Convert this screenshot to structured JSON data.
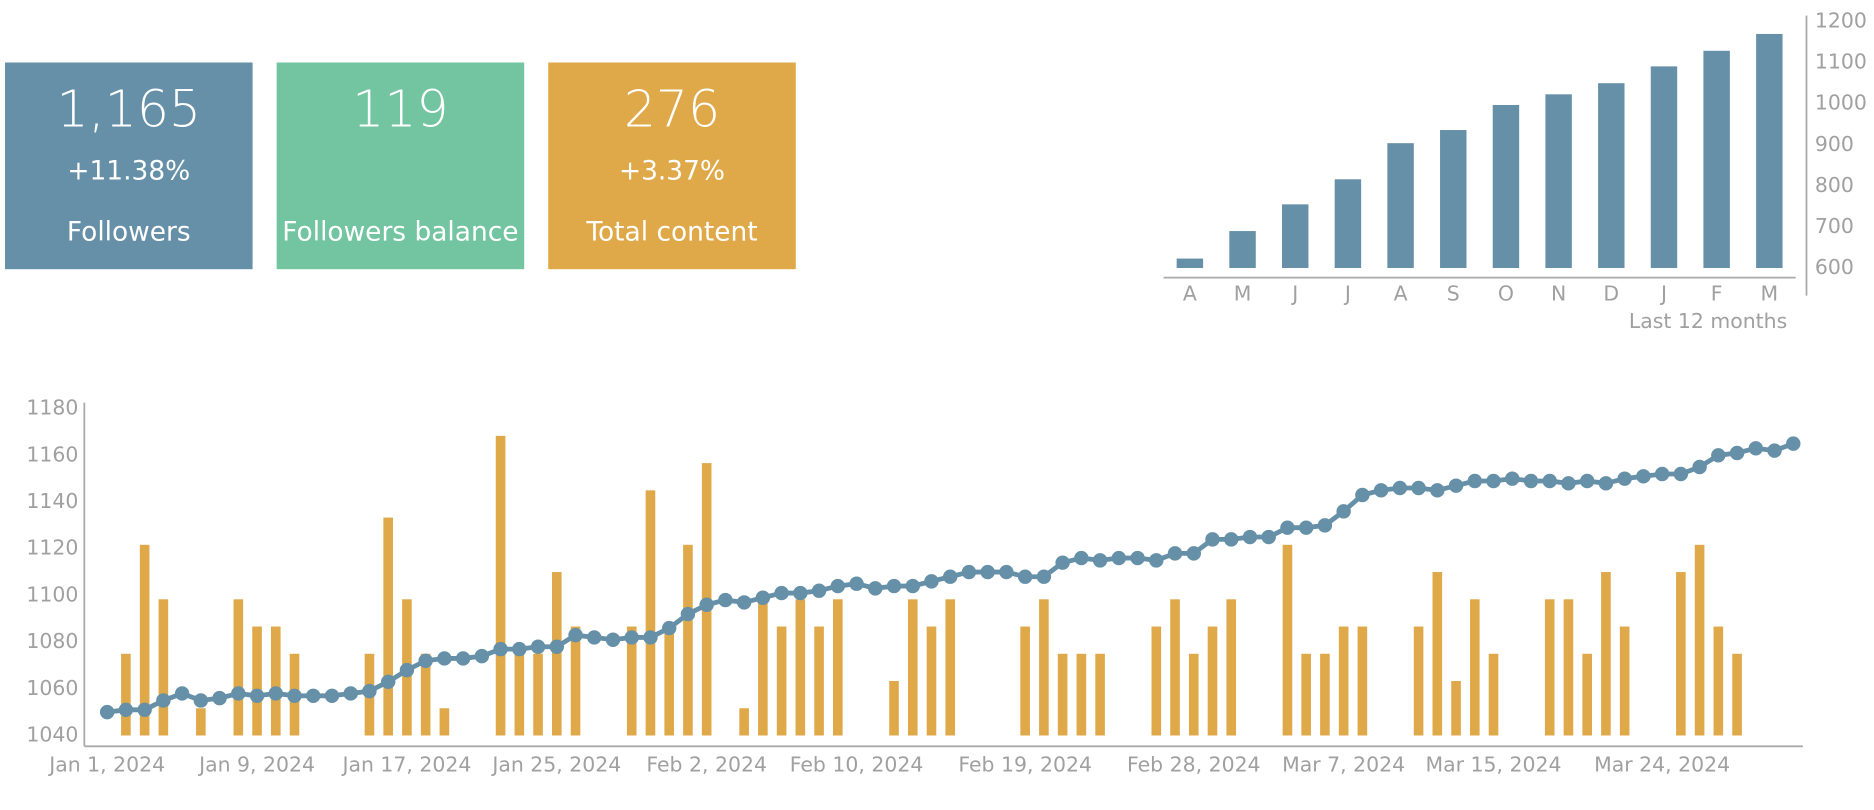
{
  "kpis": [
    {
      "value": "1,165",
      "change": "+11.38%",
      "label": "Followers",
      "color": "#6690a8"
    },
    {
      "value": "119",
      "label": "Followers balance",
      "color": "#72c5a0"
    },
    {
      "value": "276",
      "change": "+3.37%",
      "label": "Total content",
      "color": "#dfa94a"
    }
  ],
  "chart_data": [
    {
      "type": "bar",
      "subtitle": "Last 12 months",
      "categories": [
        "A",
        "M",
        "J",
        "J",
        "A",
        "S",
        "O",
        "N",
        "D",
        "J",
        "F",
        "M"
      ],
      "values": [
        623,
        690,
        755,
        816,
        904,
        936,
        997,
        1023,
        1050,
        1091,
        1129,
        1170
      ],
      "color": "#6690a8",
      "ylim": [
        600,
        1200
      ],
      "yticks": [
        600,
        700,
        800,
        900,
        1000,
        1100,
        1200
      ],
      "y_axis_side": "right",
      "grid": false
    },
    {
      "type": "combo",
      "grid": false,
      "x": [
        "2024-01-01",
        "2024-01-02",
        "2024-01-03",
        "2024-01-04",
        "2024-01-05",
        "2024-01-06",
        "2024-01-07",
        "2024-01-08",
        "2024-01-09",
        "2024-01-10",
        "2024-01-11",
        "2024-01-12",
        "2024-01-13",
        "2024-01-14",
        "2024-01-15",
        "2024-01-16",
        "2024-01-17",
        "2024-01-18",
        "2024-01-19",
        "2024-01-20",
        "2024-01-21",
        "2024-01-22",
        "2024-01-23",
        "2024-01-24",
        "2024-01-25",
        "2024-01-26",
        "2024-01-27",
        "2024-01-28",
        "2024-01-29",
        "2024-01-30",
        "2024-01-31",
        "2024-02-01",
        "2024-02-02",
        "2024-02-03",
        "2024-02-04",
        "2024-02-05",
        "2024-02-06",
        "2024-02-07",
        "2024-02-08",
        "2024-02-09",
        "2024-02-10",
        "2024-02-11",
        "2024-02-12",
        "2024-02-13",
        "2024-02-14",
        "2024-02-15",
        "2024-02-16",
        "2024-02-17",
        "2024-02-18",
        "2024-02-19",
        "2024-02-20",
        "2024-02-21",
        "2024-02-22",
        "2024-02-23",
        "2024-02-24",
        "2024-02-25",
        "2024-02-26",
        "2024-02-27",
        "2024-02-28",
        "2024-02-29",
        "2024-03-01",
        "2024-03-02",
        "2024-03-03",
        "2024-03-04",
        "2024-03-05",
        "2024-03-06",
        "2024-03-07",
        "2024-03-08",
        "2024-03-09",
        "2024-03-10",
        "2024-03-11",
        "2024-03-12",
        "2024-03-13",
        "2024-03-14",
        "2024-03-15",
        "2024-03-16",
        "2024-03-17",
        "2024-03-18",
        "2024-03-19",
        "2024-03-20",
        "2024-03-21",
        "2024-03-22",
        "2024-03-23",
        "2024-03-24",
        "2024-03-25",
        "2024-03-26",
        "2024-03-27",
        "2024-03-28",
        "2024-03-29",
        "2024-03-30",
        "2024-03-31"
      ],
      "xlim": [
        "2024-01-01",
        "2024-03-31"
      ],
      "xticks": [
        {
          "value": "2024-01-01",
          "label": "Jan 1, 2024"
        },
        {
          "value": "2024-01-09",
          "label": "Jan 9, 2024"
        },
        {
          "value": "2024-01-17",
          "label": "Jan 17, 2024"
        },
        {
          "value": "2024-01-25",
          "label": "Jan 25, 2024"
        },
        {
          "value": "2024-02-02",
          "label": "Feb 2, 2024"
        },
        {
          "value": "2024-02-10",
          "label": "Feb 10, 2024"
        },
        {
          "value": "2024-02-19",
          "label": "Feb 19, 2024"
        },
        {
          "value": "2024-02-28",
          "label": "Feb 28, 2024"
        },
        {
          "value": "2024-03-07",
          "label": "Mar 7, 2024"
        },
        {
          "value": "2024-03-15",
          "label": "Mar 15, 2024"
        },
        {
          "value": "2024-03-24",
          "label": "Mar 24, 2024"
        }
      ],
      "ylim": [
        1040,
        1180
      ],
      "yticks": [
        1040,
        1060,
        1080,
        1100,
        1120,
        1140,
        1160,
        1180
      ],
      "y2lim": [
        0,
        12
      ],
      "series": [
        {
          "type": "bar",
          "axis": "y2",
          "color": "#dfa94a",
          "values": [
            0,
            3,
            7,
            5,
            0,
            1,
            0,
            5,
            4,
            4,
            3,
            0,
            0,
            0,
            3,
            8,
            5,
            3,
            1,
            0,
            0,
            11,
            3,
            3,
            6,
            4,
            0,
            0,
            4,
            9,
            4,
            7,
            10,
            0,
            1,
            5,
            4,
            5,
            4,
            5,
            0,
            0,
            2,
            5,
            4,
            5,
            0,
            0,
            0,
            4,
            5,
            3,
            3,
            3,
            0,
            0,
            4,
            5,
            3,
            4,
            5,
            0,
            0,
            7,
            3,
            3,
            4,
            4,
            0,
            0,
            4,
            6,
            2,
            5,
            3,
            0,
            0,
            5,
            5,
            3,
            6,
            4,
            0,
            0,
            6,
            7,
            4,
            3,
            0,
            0,
            0
          ]
        },
        {
          "type": "line",
          "axis": "y",
          "color": "#6690a8",
          "values": [
            1050,
            1051,
            1051,
            1055,
            1058,
            1055,
            1056,
            1058,
            1057,
            1058,
            1057,
            1057,
            1057,
            1058,
            1059,
            1063,
            1068,
            1072,
            1073,
            1073,
            1074,
            1077,
            1077,
            1078,
            1078,
            1083,
            1082,
            1081,
            1082,
            1082,
            1086,
            1092,
            1096,
            1098,
            1097,
            1099,
            1101,
            1101,
            1102,
            1104,
            1105,
            1103,
            1104,
            1104,
            1106,
            1108,
            1110,
            1110,
            1110,
            1108,
            1108,
            1114,
            1116,
            1115,
            1116,
            1116,
            1115,
            1118,
            1118,
            1124,
            1124,
            1125,
            1125,
            1129,
            1129,
            1130,
            1136,
            1143,
            1145,
            1146,
            1146,
            1145,
            1147,
            1149,
            1149,
            1150,
            1149,
            1149,
            1148,
            1149,
            1148,
            1150,
            1151,
            1152,
            1152,
            1155,
            1160,
            1161,
            1163,
            1162,
            1165
          ]
        }
      ]
    }
  ]
}
